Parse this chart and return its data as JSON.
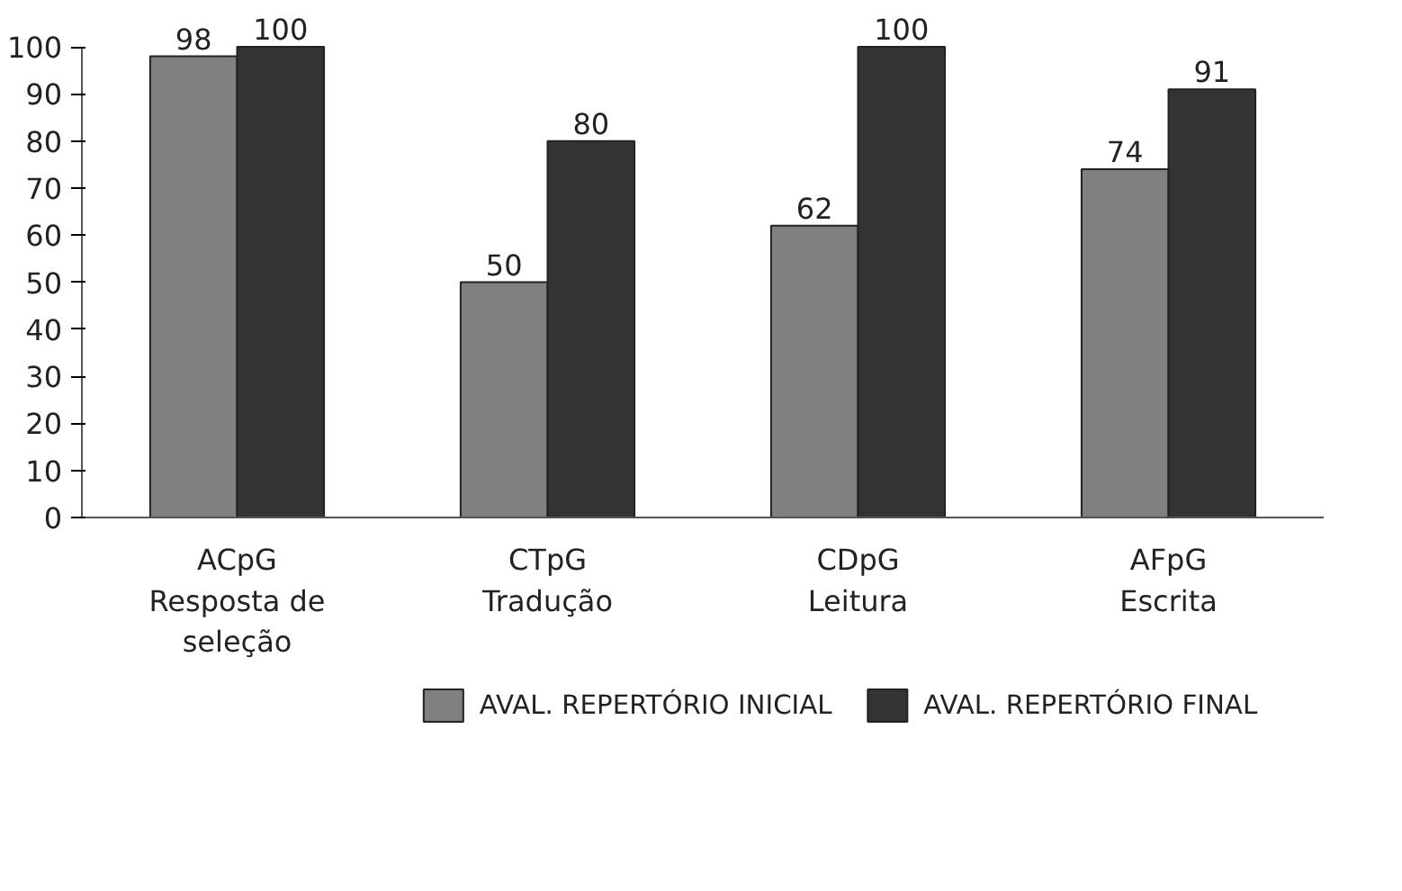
{
  "chart_data": {
    "type": "bar",
    "categories": [
      "ACpG\nResposta de\nseleção",
      "CTpG\nTradução",
      "CDpG\nLeitura",
      "AFpG\nEscrita"
    ],
    "series": [
      {
        "name": "AVAL. REPERTÓRIO INICIAL",
        "color": "#808080",
        "values": [
          98,
          50,
          62,
          74
        ]
      },
      {
        "name": "AVAL. REPERTÓRIO FINAL",
        "color": "#333333",
        "values": [
          100,
          80,
          100,
          91
        ]
      }
    ],
    "ylim": [
      0,
      100
    ],
    "yticks": [
      0,
      10,
      20,
      30,
      40,
      50,
      60,
      70,
      80,
      90,
      100
    ],
    "data_labels": true,
    "grid": false,
    "legend": "bottom"
  }
}
